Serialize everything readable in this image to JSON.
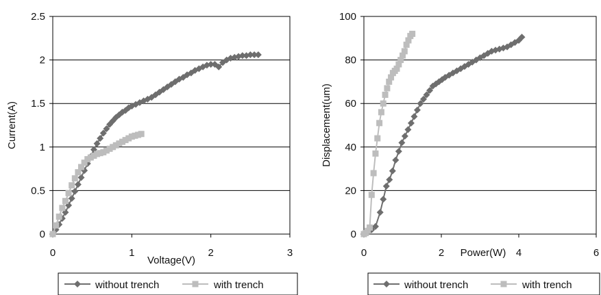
{
  "chart_data": [
    {
      "type": "line",
      "xlabel": "Voltage(V)",
      "ylabel": "Current(A)",
      "xlim": [
        0,
        3
      ],
      "ylim": [
        0,
        2.5
      ],
      "xticks": [
        "0",
        "1",
        "2",
        "3"
      ],
      "yticks": [
        "0",
        "0.5",
        "1",
        "1.5",
        "2",
        "2.5"
      ],
      "grid": "horizontal",
      "legend_position": "bottom",
      "series": [
        {
          "name": "without trench",
          "marker": "diamond",
          "color": "#6e6e6e",
          "x": [
            0.0,
            0.04,
            0.08,
            0.12,
            0.16,
            0.2,
            0.24,
            0.28,
            0.32,
            0.36,
            0.4,
            0.44,
            0.48,
            0.52,
            0.56,
            0.6,
            0.64,
            0.68,
            0.72,
            0.76,
            0.8,
            0.84,
            0.88,
            0.92,
            0.96,
            1.0,
            1.05,
            1.1,
            1.15,
            1.2,
            1.25,
            1.3,
            1.35,
            1.4,
            1.45,
            1.5,
            1.55,
            1.6,
            1.65,
            1.7,
            1.75,
            1.8,
            1.85,
            1.9,
            1.95,
            2.0,
            2.05,
            2.1,
            2.15,
            2.2,
            2.25,
            2.3,
            2.35,
            2.4,
            2.45,
            2.5,
            2.55,
            2.6
          ],
          "y": [
            0.0,
            0.05,
            0.11,
            0.18,
            0.25,
            0.33,
            0.41,
            0.49,
            0.57,
            0.65,
            0.73,
            0.81,
            0.89,
            0.97,
            1.04,
            1.1,
            1.16,
            1.21,
            1.26,
            1.3,
            1.34,
            1.37,
            1.4,
            1.42,
            1.45,
            1.47,
            1.49,
            1.51,
            1.53,
            1.55,
            1.57,
            1.6,
            1.63,
            1.66,
            1.69,
            1.72,
            1.75,
            1.78,
            1.8,
            1.83,
            1.85,
            1.88,
            1.9,
            1.92,
            1.94,
            1.95,
            1.95,
            1.92,
            1.97,
            2.0,
            2.02,
            2.03,
            2.04,
            2.05,
            2.05,
            2.06,
            2.06,
            2.06
          ]
        },
        {
          "name": "with trench",
          "marker": "square",
          "color": "#bdbdbd",
          "x": [
            0.0,
            0.04,
            0.08,
            0.12,
            0.16,
            0.2,
            0.24,
            0.28,
            0.32,
            0.36,
            0.4,
            0.44,
            0.48,
            0.52,
            0.56,
            0.6,
            0.64,
            0.68,
            0.72,
            0.76,
            0.8,
            0.84,
            0.88,
            0.92,
            0.96,
            1.0,
            1.04,
            1.08,
            1.12
          ],
          "y": [
            0.0,
            0.1,
            0.2,
            0.3,
            0.38,
            0.47,
            0.56,
            0.64,
            0.71,
            0.77,
            0.82,
            0.86,
            0.88,
            0.9,
            0.92,
            0.93,
            0.94,
            0.96,
            0.98,
            1.0,
            1.02,
            1.04,
            1.06,
            1.08,
            1.1,
            1.12,
            1.13,
            1.14,
            1.15
          ]
        }
      ]
    },
    {
      "type": "line",
      "xlabel": "Power(W)",
      "ylabel": "Displacement(um)",
      "xlim": [
        0,
        6
      ],
      "ylim": [
        0,
        100
      ],
      "xticks": [
        "0",
        "2",
        "4",
        "6"
      ],
      "yticks": [
        "0",
        "20",
        "40",
        "60",
        "80",
        "100"
      ],
      "grid": "horizontal",
      "legend_position": "bottom",
      "series": [
        {
          "name": "without trench",
          "marker": "diamond",
          "color": "#6e6e6e",
          "x": [
            0.0,
            0.05,
            0.1,
            0.15,
            0.2,
            0.3,
            0.42,
            0.5,
            0.58,
            0.66,
            0.74,
            0.82,
            0.9,
            0.98,
            1.06,
            1.14,
            1.22,
            1.3,
            1.38,
            1.46,
            1.54,
            1.62,
            1.7,
            1.78,
            1.86,
            1.94,
            2.02,
            2.1,
            2.2,
            2.3,
            2.4,
            2.5,
            2.6,
            2.7,
            2.8,
            2.9,
            3.0,
            3.1,
            3.2,
            3.3,
            3.4,
            3.5,
            3.6,
            3.7,
            3.8,
            3.9,
            4.0,
            4.08
          ],
          "y": [
            0.0,
            0.5,
            1.0,
            1.5,
            2.0,
            3.5,
            10.0,
            16.0,
            22.0,
            25.0,
            29.0,
            34.0,
            38.0,
            42.0,
            45.0,
            48.0,
            51.0,
            54.0,
            57.0,
            60.0,
            62.0,
            64.0,
            66.0,
            68.0,
            69.0,
            70.0,
            71.0,
            72.0,
            73.0,
            74.0,
            75.0,
            76.0,
            77.0,
            78.0,
            79.0,
            80.0,
            81.0,
            82.0,
            83.0,
            84.0,
            84.5,
            85.0,
            85.5,
            86.0,
            87.0,
            88.0,
            89.0,
            90.5
          ]
        },
        {
          "name": "with trench",
          "marker": "square",
          "color": "#bdbdbd",
          "x": [
            0.0,
            0.05,
            0.1,
            0.15,
            0.2,
            0.25,
            0.3,
            0.35,
            0.4,
            0.45,
            0.5,
            0.55,
            0.6,
            0.65,
            0.7,
            0.75,
            0.8,
            0.85,
            0.9,
            0.95,
            1.0,
            1.05,
            1.1,
            1.15,
            1.2,
            1.25
          ],
          "y": [
            0.0,
            0.5,
            1.5,
            3.0,
            18.0,
            28.0,
            37.0,
            44.0,
            51.0,
            56.0,
            60.0,
            64.0,
            67.0,
            70.0,
            72.0,
            74.0,
            75.0,
            76.0,
            78.0,
            80.0,
            82.0,
            84.0,
            87.0,
            89.0,
            91.0,
            92.0
          ]
        }
      ]
    }
  ]
}
